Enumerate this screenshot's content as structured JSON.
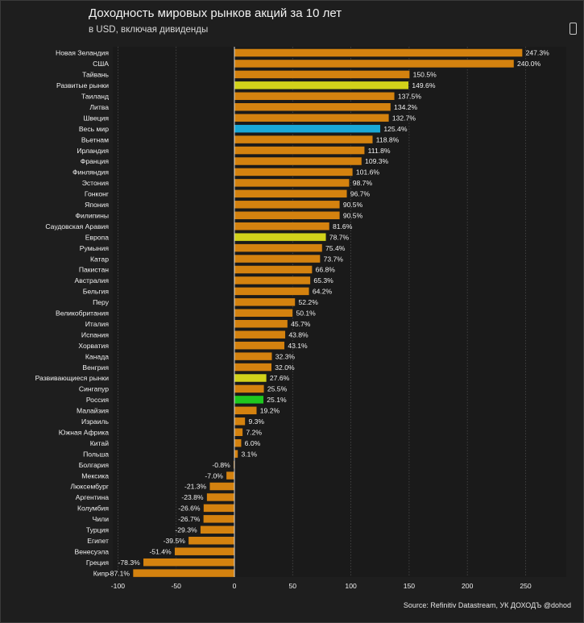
{
  "header": {
    "title": "Доходность мировых рынков акций за 10 лет",
    "subtitle": "в USD, включая дивиденды"
  },
  "footer": {
    "source": "Source: Refinitiv Datastream, УК ДОХОДЪ @dohod"
  },
  "colors": {
    "background": "#1e1e1e",
    "default_bar": "#d4820f",
    "developed_bar": "#d2d21a",
    "world_bar": "#1aa8d6",
    "russia_bar": "#1ec81e",
    "grid": "#4a4a4a",
    "zero_line": "#d8d8d8"
  },
  "chart_data": {
    "type": "bar",
    "orientation": "horizontal",
    "title": "Доходность мировых рынков акций за 10 лет",
    "subtitle": "в USD, включая дивиденды",
    "xlabel": "",
    "ylabel": "",
    "xlim": [
      -100,
      250
    ],
    "xticks": [
      -100,
      -50,
      0,
      50,
      100,
      150,
      200,
      250
    ],
    "grid": true,
    "categories": [
      "Новая Зеландия",
      "США",
      "Тайвань",
      "Развитые рынки",
      "Таиланд",
      "Литва",
      "Швеция",
      "Весь мир",
      "Вьетнам",
      "Ирландия",
      "Франция",
      "Финляндия",
      "Эстония",
      "Гонконг",
      "Япония",
      "Филипины",
      "Саудовская Аравия",
      "Европа",
      "Румыния",
      "Катар",
      "Пакистан",
      "Австралия",
      "Бельгия",
      "Перу",
      "Великобритания",
      "Италия",
      "Испания",
      "Хорватия",
      "Канада",
      "Венгрия",
      "Развивающиеся рынки",
      "Сингапур",
      "Россия",
      "Малайзия",
      "Израиль",
      "Южная Африка",
      "Китай",
      "Польша",
      "Болгария",
      "Мексика",
      "Люксембург",
      "Аргентина",
      "Колумбия",
      "Чили",
      "Турция",
      "Египет",
      "Венесуэла",
      "Греция",
      "Кипр"
    ],
    "values": [
      247.3,
      240.0,
      150.5,
      149.6,
      137.5,
      134.2,
      132.7,
      125.4,
      118.8,
      111.8,
      109.3,
      101.6,
      98.7,
      96.7,
      90.5,
      90.5,
      81.6,
      78.7,
      75.4,
      73.7,
      66.8,
      65.3,
      64.2,
      52.2,
      50.1,
      45.7,
      43.8,
      43.1,
      32.3,
      32.0,
      27.6,
      25.5,
      25.1,
      19.2,
      9.3,
      7.2,
      6.0,
      3.1,
      -0.8,
      -7.0,
      -21.3,
      -23.8,
      -26.6,
      -26.7,
      -29.3,
      -39.5,
      -51.4,
      -78.3,
      -87.1
    ],
    "value_labels": [
      "247.3%",
      "240.0%",
      "150.5%",
      "149.6%",
      "137.5%",
      "134.2%",
      "132.7%",
      "125.4%",
      "118.8%",
      "111.8%",
      "109.3%",
      "101.6%",
      "98.7%",
      "96.7%",
      "90.5%",
      "90.5%",
      "81.6%",
      "78.7%",
      "75.4%",
      "73.7%",
      "66.8%",
      "65.3%",
      "64.2%",
      "52.2%",
      "50.1%",
      "45.7%",
      "43.8%",
      "43.1%",
      "32.3%",
      "32.0%",
      "27.6%",
      "25.5%",
      "25.1%",
      "19.2%",
      "9.3%",
      "7.2%",
      "6.0%",
      "3.1%",
      "-0.8%",
      "-7.0%",
      "-21.3%",
      "-23.8%",
      "-26.6%",
      "-26.7%",
      "-29.3%",
      "-39.5%",
      "-51.4%",
      "-78.3%",
      "-87.1%"
    ],
    "highlights": {
      "Развитые рынки": "developed_bar",
      "Европа": "developed_bar",
      "Развивающиеся рынки": "developed_bar",
      "Весь мир": "world_bar",
      "Россия": "russia_bar"
    }
  }
}
